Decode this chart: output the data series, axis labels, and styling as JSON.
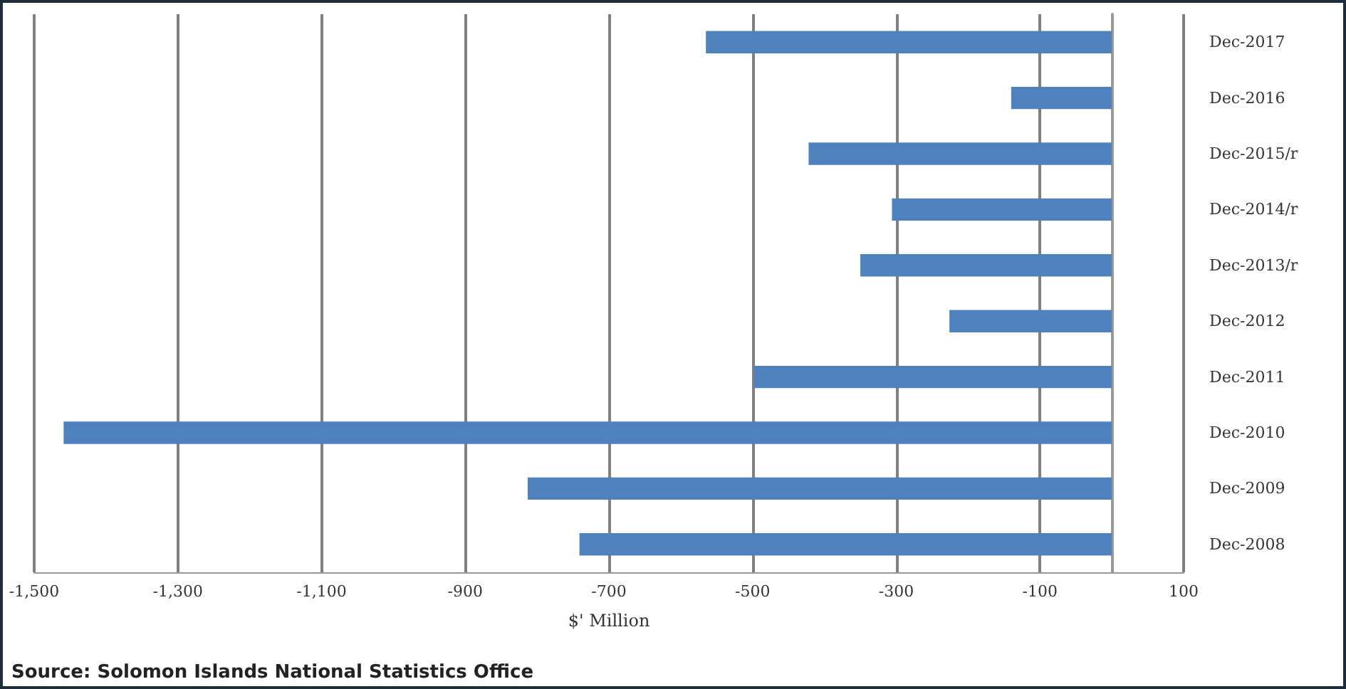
{
  "chart_data": {
    "type": "bar",
    "orientation": "horizontal",
    "xlabel": "$' Million",
    "categories": [
      "Dec-2017",
      "Dec-2016",
      "Dec-2015/r",
      "Dec-2014/r",
      "Dec-2013/r",
      "Dec-2012",
      "Dec-2011",
      "Dec-2010",
      "Dec-2009",
      "Dec-2008"
    ],
    "values": [
      -565,
      -140,
      -422,
      -306,
      -350,
      -226,
      -498,
      -1459,
      -813,
      -741
    ],
    "color": "#4f81bd",
    "xlim": [
      -1500,
      100
    ],
    "xticks": [
      {
        "value": -1500,
        "label": "-1,500"
      },
      {
        "value": -1300,
        "label": "-1,300"
      },
      {
        "value": -1100,
        "label": "-1,100"
      },
      -900,
      -700,
      -500,
      -300,
      -100,
      100
    ],
    "grid": "x",
    "annotations": [
      "Source: Solomon Islands National Statistics Office"
    ]
  }
}
